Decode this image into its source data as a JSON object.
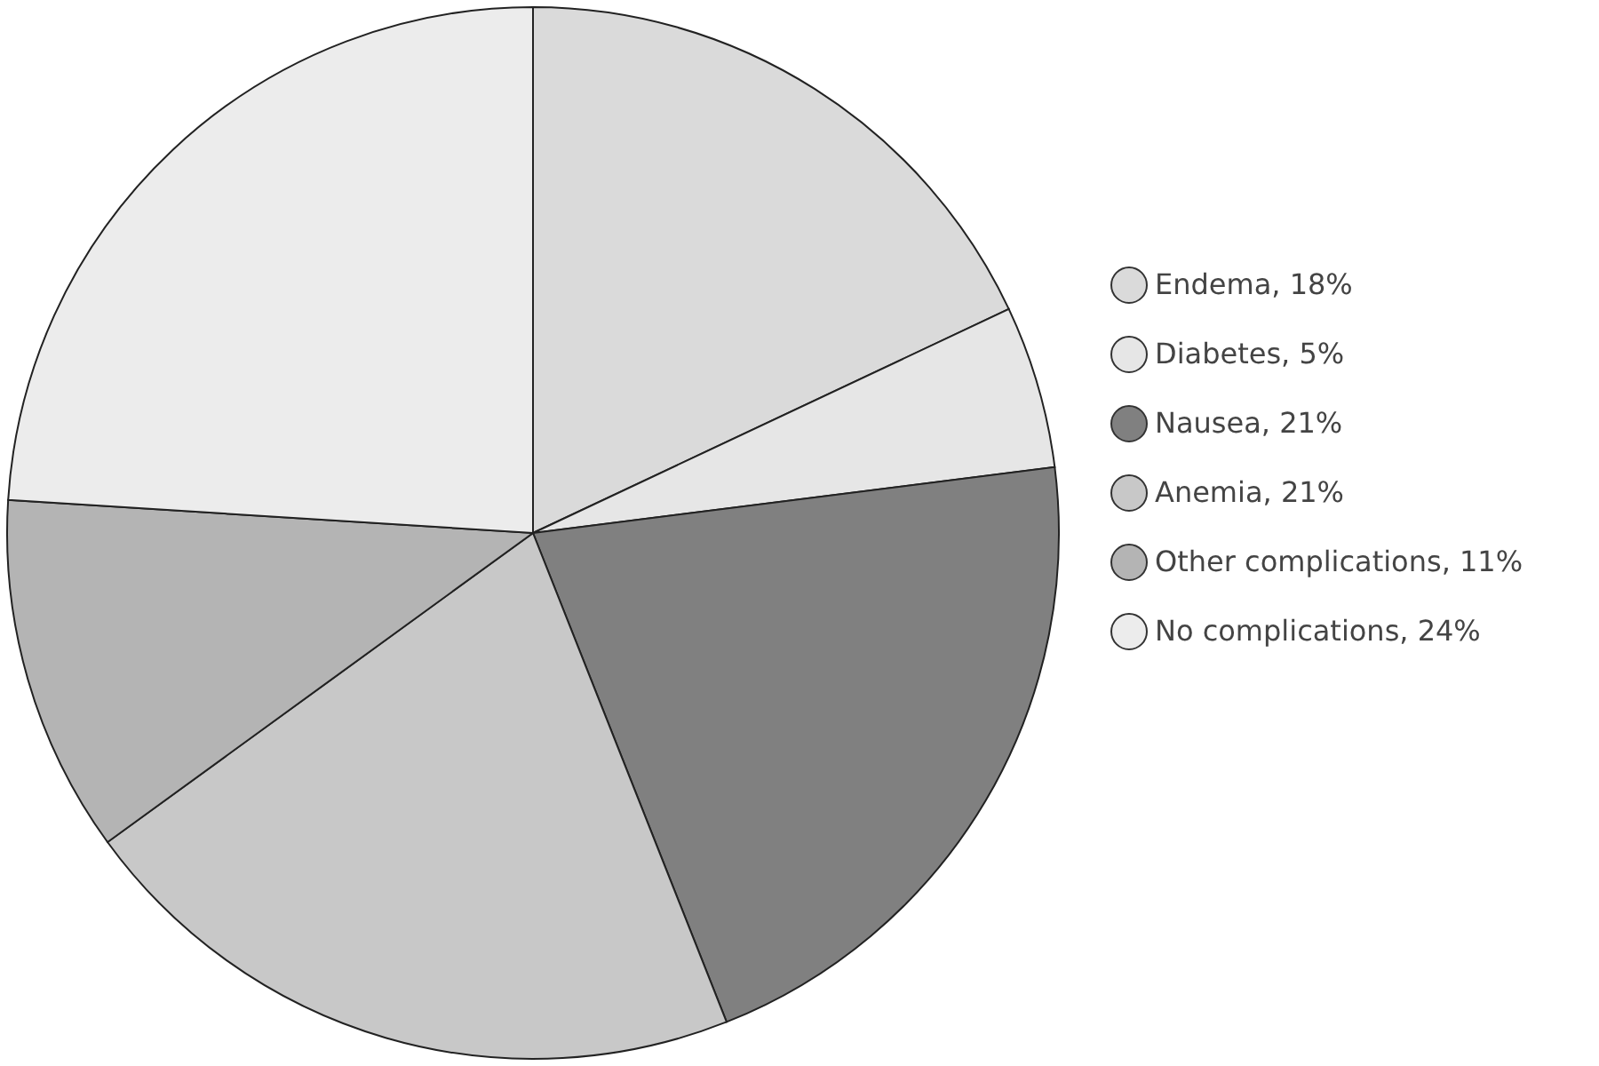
{
  "chart_data": {
    "type": "pie",
    "categories": [
      "Endema, 18%",
      "Diabetes, 5%",
      "Nausea, 21%",
      "Anemia, 21%",
      "Other complications, 11%",
      "No complications, 24%"
    ],
    "values": [
      18,
      5,
      21,
      21,
      11,
      24
    ],
    "colors": [
      "#dadada",
      "#e6e6e6",
      "#808080",
      "#c8c8c8",
      "#b4b4b4",
      "#ececec"
    ],
    "legend": "right"
  }
}
